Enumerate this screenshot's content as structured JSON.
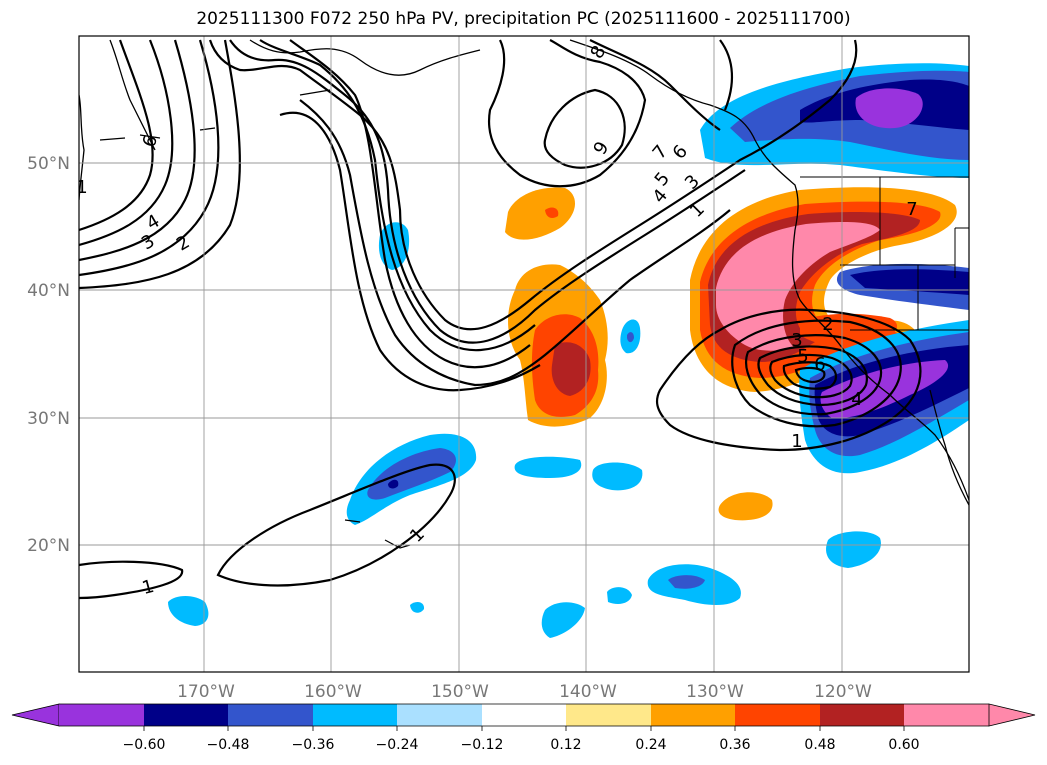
{
  "title": "2025111300 F072 250 hPa PV, precipitation PC (2025111600 - 2025111700)",
  "lat_labels": [
    "50°N",
    "40°N",
    "30°N",
    "20°N"
  ],
  "lon_labels": [
    "170°W",
    "160°W",
    "150°W",
    "140°W",
    "130°W",
    "120°W"
  ],
  "colorbar": {
    "tick_labels": [
      "−0.60",
      "−0.48",
      "−0.36",
      "−0.24",
      "−0.12",
      "0.12",
      "0.24",
      "0.36",
      "0.48",
      "0.60"
    ],
    "colors": [
      "#9933dd",
      "#000088",
      "#3355cc",
      "#00bbff",
      "#aae0ff",
      "#ffffff",
      "#ffe88a",
      "#ffa000",
      "#ff4400",
      "#b22222",
      "#ff88aa"
    ]
  },
  "contour_labels": [
    "8",
    "9",
    "7",
    "6",
    "5",
    "4",
    "3",
    "1",
    "6",
    "4",
    "3",
    "2",
    "1",
    "1",
    "1",
    "2",
    "3",
    "5",
    "6",
    "4",
    "7",
    "1"
  ]
}
